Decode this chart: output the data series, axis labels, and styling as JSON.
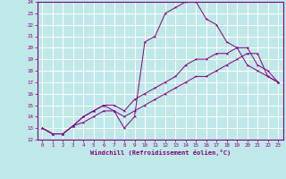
{
  "xlabel": "Windchill (Refroidissement éolien,°C)",
  "bg_color": "#c0e8e8",
  "line_color": "#800080",
  "grid_color": "#ffffff",
  "xlim": [
    -0.5,
    23.5
  ],
  "ylim": [
    12,
    24
  ],
  "xticks": [
    0,
    1,
    2,
    3,
    4,
    5,
    6,
    7,
    8,
    9,
    10,
    11,
    12,
    13,
    14,
    15,
    16,
    17,
    18,
    19,
    20,
    21,
    22,
    23
  ],
  "yticks": [
    12,
    13,
    14,
    15,
    16,
    17,
    18,
    19,
    20,
    21,
    22,
    23,
    24
  ],
  "line1_x": [
    0,
    1,
    2,
    3,
    4,
    5,
    6,
    7,
    8,
    9,
    10,
    11,
    12,
    13,
    14,
    15,
    16,
    17,
    18,
    19,
    20,
    21,
    22,
    23
  ],
  "line1_y": [
    13.0,
    12.5,
    12.5,
    13.2,
    14.0,
    14.5,
    15.0,
    14.5,
    13.0,
    14.0,
    20.5,
    21.0,
    23.0,
    23.5,
    24.0,
    24.0,
    22.5,
    22.0,
    20.5,
    20.0,
    18.5,
    18.0,
    17.5,
    17.0
  ],
  "line2_x": [
    0,
    1,
    2,
    3,
    4,
    5,
    6,
    7,
    8,
    9,
    10,
    11,
    12,
    13,
    14,
    15,
    16,
    17,
    18,
    19,
    20,
    21,
    22,
    23
  ],
  "line2_y": [
    13.0,
    12.5,
    12.5,
    13.2,
    14.0,
    14.5,
    15.0,
    15.0,
    14.5,
    15.5,
    16.0,
    16.5,
    17.0,
    17.5,
    18.5,
    19.0,
    19.0,
    19.5,
    19.5,
    20.0,
    20.0,
    18.5,
    18.0,
    17.0
  ],
  "line3_x": [
    0,
    1,
    2,
    3,
    4,
    5,
    6,
    7,
    8,
    9,
    10,
    11,
    12,
    13,
    14,
    15,
    16,
    17,
    18,
    19,
    20,
    21,
    22,
    23
  ],
  "line3_y": [
    13.0,
    12.5,
    12.5,
    13.2,
    13.5,
    14.0,
    14.5,
    14.5,
    14.0,
    14.5,
    15.0,
    15.5,
    16.0,
    16.5,
    17.0,
    17.5,
    17.5,
    18.0,
    18.5,
    19.0,
    19.5,
    19.5,
    17.5,
    17.0
  ]
}
